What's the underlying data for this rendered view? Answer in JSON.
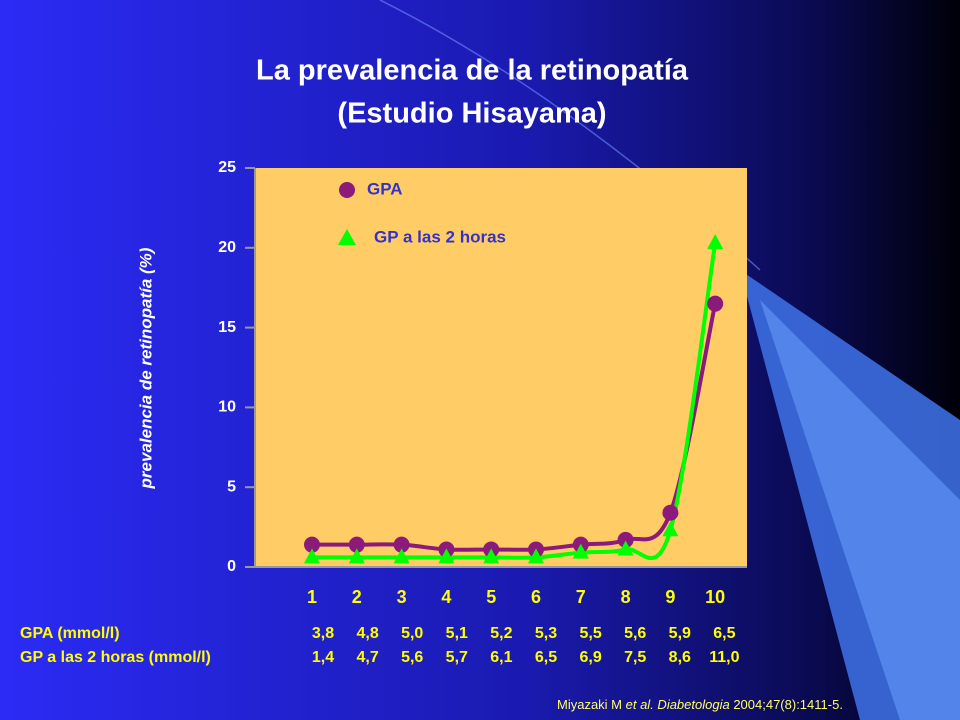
{
  "chart_data": {
    "type": "line",
    "title": [
      "La prevalencia de la retinopatía",
      "(Estudio Hisayama)"
    ],
    "y_label": "prevalencia de retinopatía (%)",
    "categories": [
      "1",
      "2",
      "3",
      "4",
      "5",
      "6",
      "7",
      "8",
      "9",
      "10"
    ],
    "series": [
      {
        "name": "GPA",
        "color": "#8b1a7a",
        "marker": "circle",
        "values": [
          1.4,
          1.4,
          1.4,
          1.1,
          1.1,
          1.1,
          1.4,
          1.7,
          3.4,
          16.5
        ]
      },
      {
        "name": "GP a las 2 horas",
        "color": "#00ff00",
        "marker": "triangle",
        "values": [
          0.6,
          0.6,
          0.6,
          0.6,
          0.6,
          0.6,
          0.9,
          1.1,
          2.3,
          20.3
        ]
      }
    ],
    "ylim": [
      0,
      25
    ],
    "yticks": [
      0,
      5,
      10,
      15,
      20,
      25
    ],
    "table": [
      {
        "label": "GPA (mmol/l)",
        "values": [
          "3,8",
          "4,8",
          "5,0",
          "5,1",
          "5,2",
          "5,3",
          "5,5",
          "5,6",
          "5,9",
          "6,5"
        ]
      },
      {
        "label": "GP a las 2 horas (mmol/l)",
        "values": [
          "1,4",
          "4,7",
          "5,6",
          "5,7",
          "6,1",
          "6,5",
          "6,9",
          "7,5",
          "8,6",
          "11,0"
        ]
      }
    ],
    "citation": [
      "Miyazaki M ",
      "et al.",
      " Diabetologia",
      " 2004;47(8):1411-5."
    ]
  }
}
